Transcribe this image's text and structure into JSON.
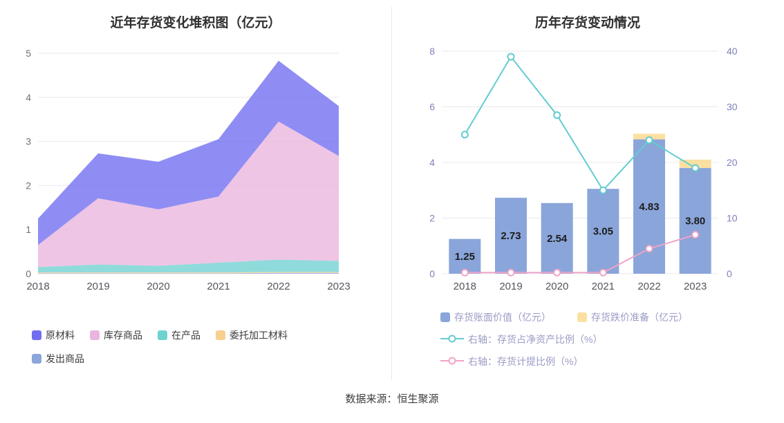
{
  "source": "数据来源：恒生聚源",
  "chart_data": [
    {
      "type": "area",
      "title": "近年存货变化堆积图（亿元）",
      "stacked": true,
      "categories": [
        "2018",
        "2019",
        "2020",
        "2021",
        "2022",
        "2023"
      ],
      "ylim": [
        0,
        5
      ],
      "yticks": [
        0,
        1,
        2,
        3,
        4,
        5
      ],
      "grid": true,
      "legend_position": "bottom",
      "series": [
        {
          "name": "发出商品",
          "color": "#8aa6da",
          "values": [
            0.01,
            0.01,
            0.01,
            0.01,
            0.02,
            0.02
          ]
        },
        {
          "name": "委托加工材料",
          "color": "#f9cf90",
          "values": [
            0.02,
            0.02,
            0.02,
            0.02,
            0.02,
            0.02
          ]
        },
        {
          "name": "在产品",
          "color": "#70d1d1",
          "values": [
            0.12,
            0.18,
            0.15,
            0.22,
            0.28,
            0.25
          ]
        },
        {
          "name": "库存商品",
          "color": "#eab5de",
          "values": [
            0.5,
            1.5,
            1.28,
            1.5,
            3.13,
            2.38
          ]
        },
        {
          "name": "原材料",
          "color": "#706df0",
          "values": [
            0.6,
            1.02,
            1.08,
            1.3,
            1.38,
            1.13
          ]
        }
      ],
      "legend_order": [
        "原材料",
        "库存商品",
        "在产品",
        "委托加工材料",
        "发出商品"
      ],
      "totals": [
        1.25,
        2.73,
        2.54,
        3.05,
        4.83,
        3.8
      ]
    },
    {
      "type": "bar+line",
      "title": "历年存货变动情况",
      "categories": [
        "2018",
        "2019",
        "2020",
        "2021",
        "2022",
        "2023"
      ],
      "left_axis": {
        "min": 0,
        "max": 8,
        "ticks": [
          0,
          2,
          4,
          6,
          8
        ]
      },
      "right_axis": {
        "min": 0,
        "max": 40,
        "ticks": [
          0,
          10,
          20,
          30,
          40
        ]
      },
      "grid": true,
      "legend_position": "bottom",
      "bars": [
        {
          "name": "存货账面价值（亿元）",
          "color": "#8aa5d9",
          "values": [
            1.25,
            2.73,
            2.54,
            3.05,
            4.83,
            3.8
          ],
          "labels": [
            "1.25",
            "2.73",
            "2.54",
            "3.05",
            "4.83",
            "3.80"
          ]
        },
        {
          "name": "存货跌价准备（亿元）",
          "color": "#fbe0a2",
          "values": [
            0,
            0,
            0,
            0,
            0.2,
            0.3
          ]
        }
      ],
      "lines": [
        {
          "name": "右轴：存货占净资产比例（%）",
          "color": "#63ccd0",
          "axis": "right",
          "values": [
            25,
            39,
            28.5,
            15,
            24,
            19
          ]
        },
        {
          "name": "右轴：存货计提比例（%）",
          "color": "#f0a3c7",
          "axis": "right",
          "values": [
            0.2,
            0.2,
            0.2,
            0.2,
            4.5,
            7
          ]
        }
      ]
    }
  ]
}
